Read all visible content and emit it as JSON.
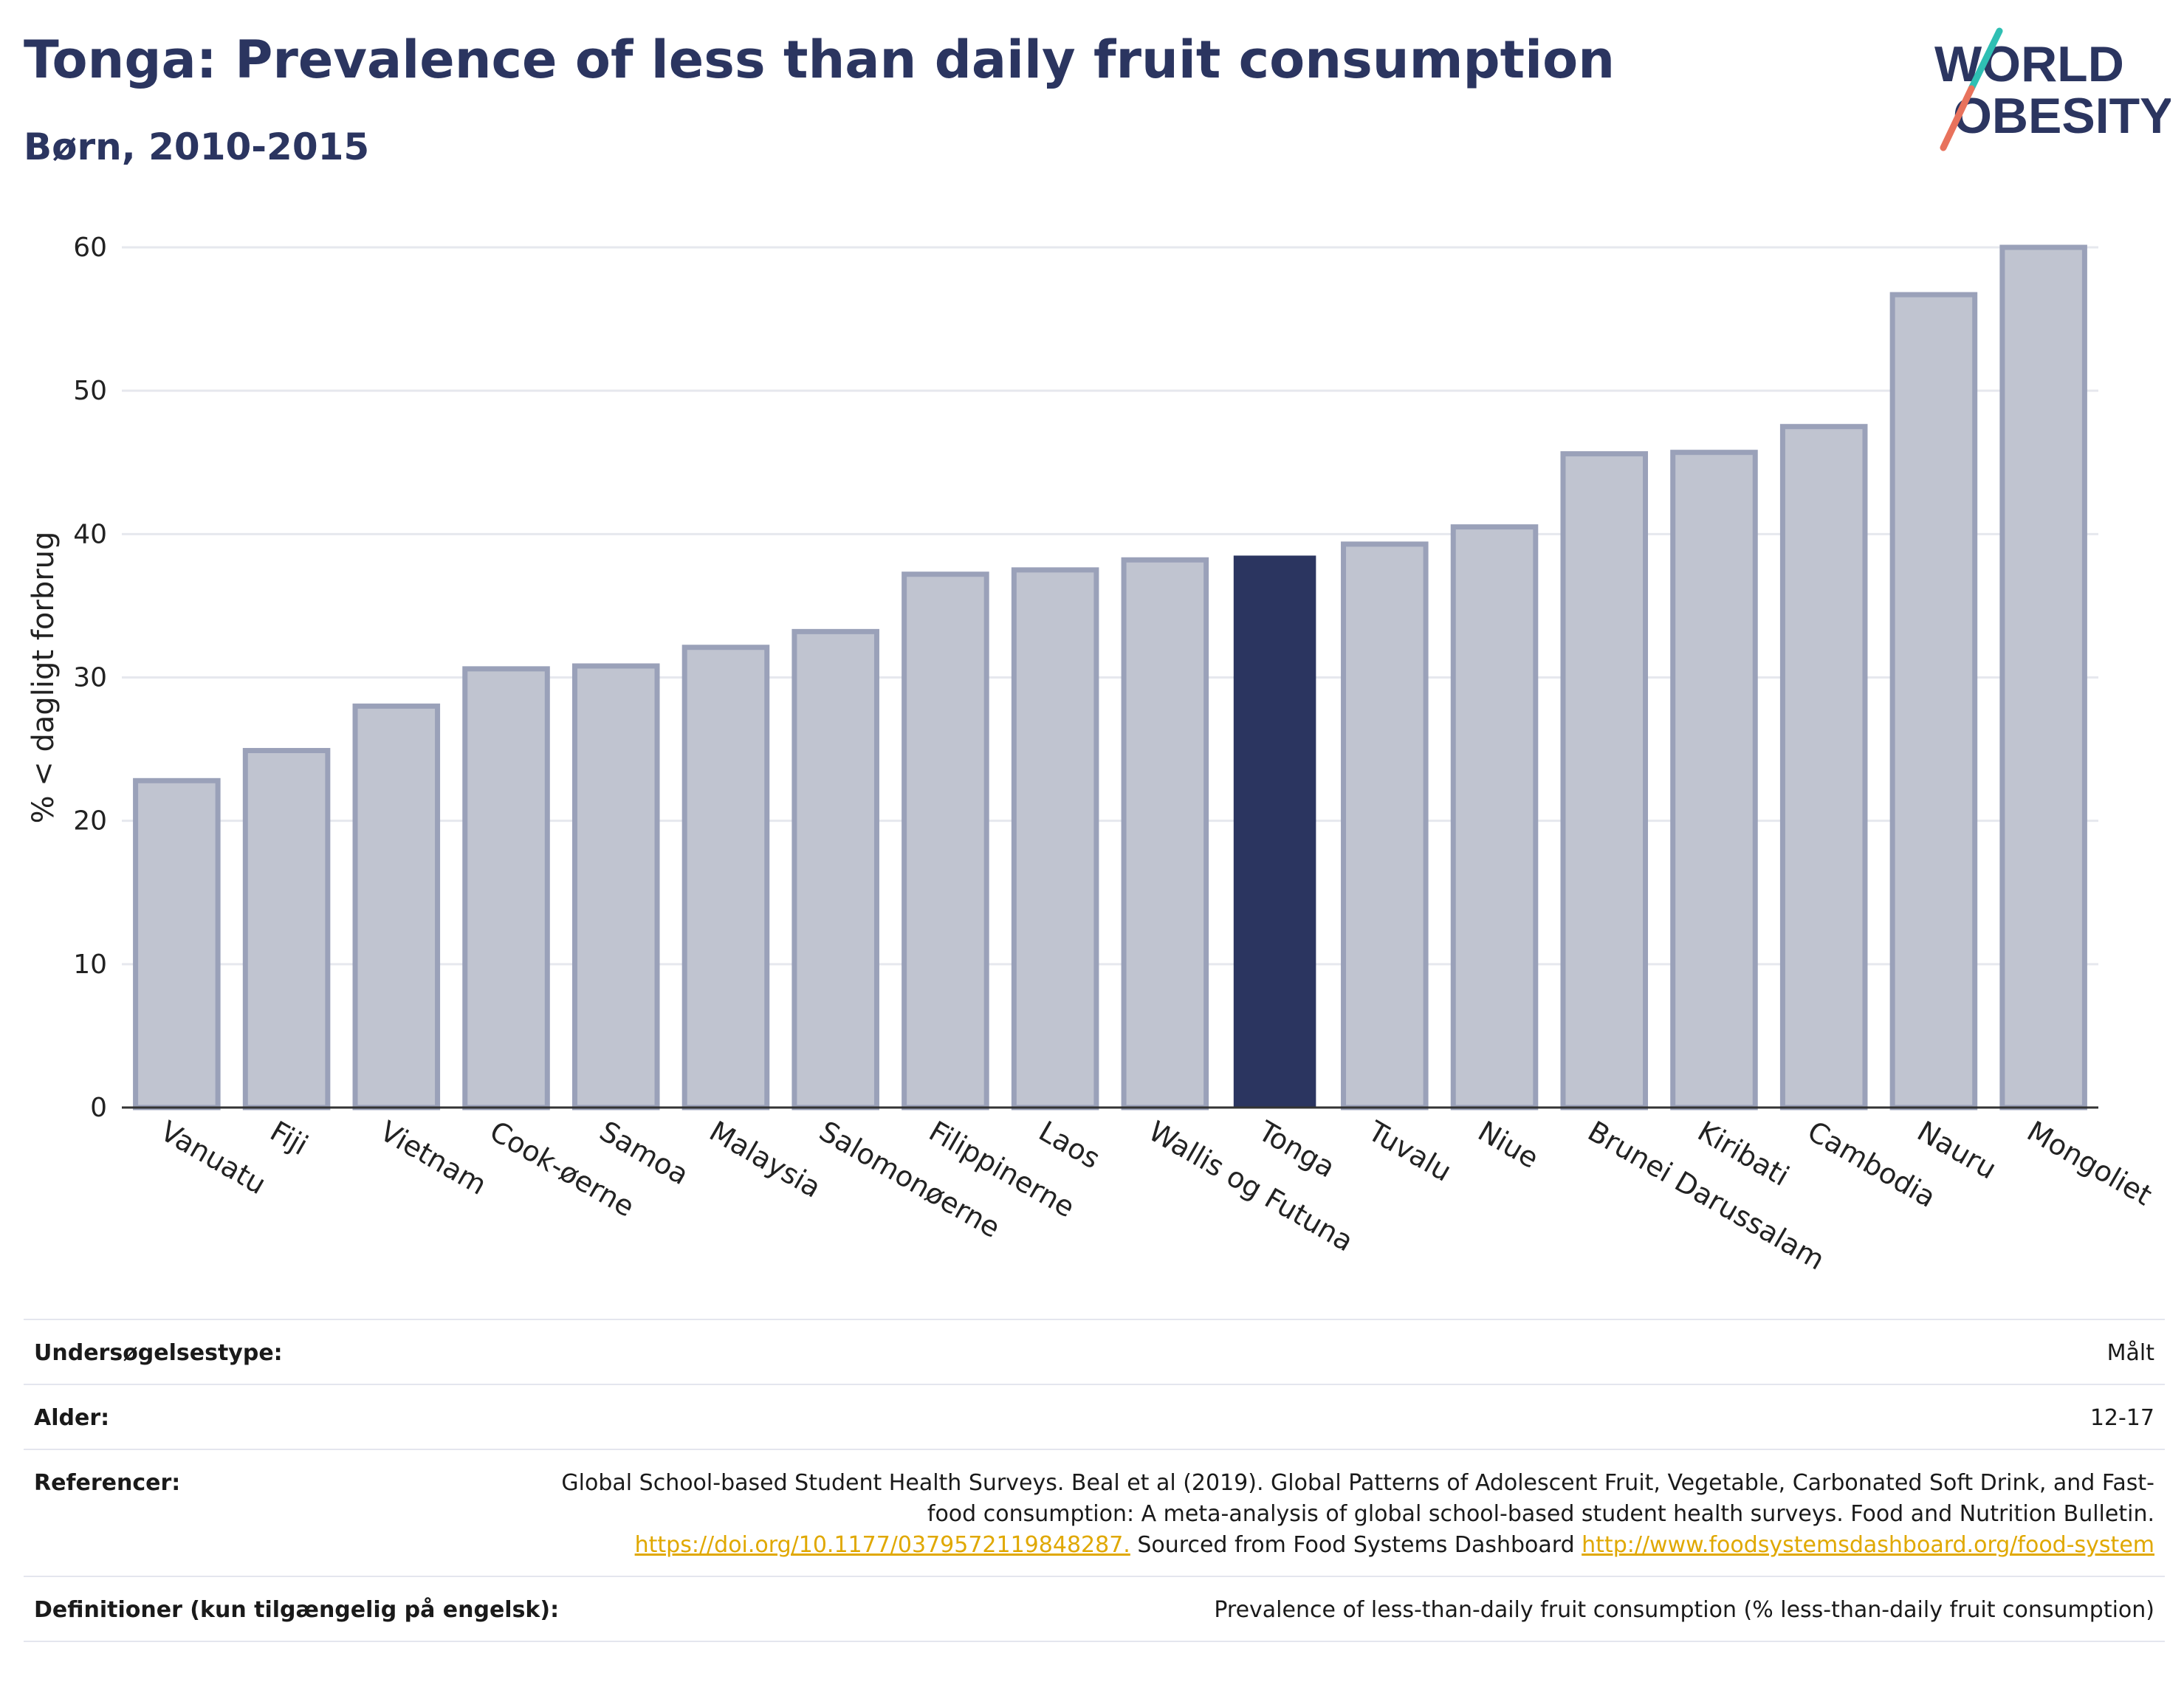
{
  "header": {
    "title": "Tonga: Prevalence of less than daily fruit consumption",
    "subtitle": "Børn, 2010-2015"
  },
  "logo": {
    "line1": "WORLD",
    "line2": "OBESITY",
    "accent_teal": "#2fbfb3",
    "accent_coral": "#e8725c"
  },
  "chart_data": {
    "type": "bar",
    "categories": [
      "Vanuatu",
      "Fiji",
      "Vietnam",
      "Cook-øerne",
      "Samoa",
      "Malaysia",
      "Salomonøerne",
      "Filippinerne",
      "Laos",
      "Wallis og Futuna",
      "Tonga",
      "Tuvalu",
      "Niue",
      "Brunei Darussalam",
      "Kiribati",
      "Cambodia",
      "Nauru",
      "Mongoliet"
    ],
    "values": [
      22.8,
      24.9,
      28.0,
      30.6,
      30.8,
      32.1,
      33.2,
      37.2,
      37.5,
      38.2,
      38.5,
      39.3,
      40.5,
      45.6,
      45.7,
      47.5,
      56.7,
      60.0
    ],
    "highlight": "Tonga",
    "ylabel": "% < dagligt forbrug",
    "xlabel": "",
    "ylim": [
      0,
      60
    ],
    "yticks": [
      0,
      10,
      20,
      30,
      40,
      50,
      60
    ],
    "grid": true,
    "colors": {
      "bar": "#c0c4d0",
      "bar_border": "#9aa1b9",
      "highlight": "#2b3560",
      "grid": "#e6e8ee",
      "axis": "#333333"
    }
  },
  "info": [
    {
      "label": "Undersøgelsestype:",
      "value": "Målt"
    },
    {
      "label": "Alder:",
      "value": "12-17"
    },
    {
      "label": "Referencer:",
      "value_parts": {
        "text1": "Global School-based Student Health Surveys. Beal et al (2019). Global Patterns of Adolescent Fruit, Vegetable, Carbonated Soft Drink, and Fast-food consumption: A meta-analysis of global school-based student health surveys. Food and Nutrition Bulletin. ",
        "link1": "https://doi.org/10.1177/0379572119848287.",
        "text2": " Sourced from Food Systems Dashboard ",
        "link2": "http://www.foodsystemsdashboard.org/food-system"
      }
    },
    {
      "label": "Definitioner (kun tilgængelig på engelsk):",
      "value": "Prevalence of less-than-daily fruit consumption (% less-than-daily fruit consumption)"
    }
  ]
}
